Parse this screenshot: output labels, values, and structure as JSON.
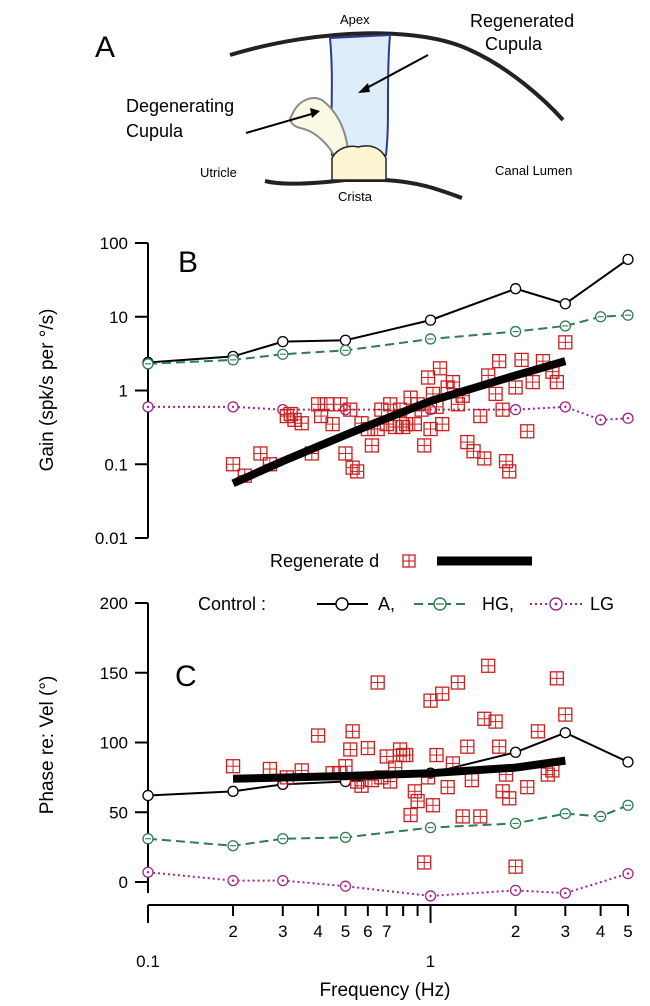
{
  "panel_a": {
    "letter": "A",
    "labels": {
      "apex": "Apex",
      "regenerated": [
        "Regenerated",
        "Cupula"
      ],
      "degenerating": [
        "Degenerating",
        "Cupula"
      ],
      "utricle": "Utricle",
      "crista": "Crista",
      "canal_lumen": "Canal Lumen"
    },
    "colors": {
      "regenerated_fill": "#ddeef8",
      "degenerating_fill": "#fbf8e4",
      "crista_fill": "#fcf5d2",
      "regen_stroke": "#2b3a8f"
    }
  },
  "legend": {
    "regenerated_label": "Regenerate d",
    "control_label": "Control :",
    "a_label": "A,",
    "hg_label": "HG,",
    "lg_label": "LG"
  },
  "colors": {
    "regenerated": "#cc1f1f",
    "A": "#000000",
    "HG": "#2e7d4f",
    "LG": "#a0268c",
    "fit": "#000000"
  },
  "chart_data": [
    {
      "panel": "B",
      "type": "scatter",
      "ylabel": "Gain (spk/s per °/s)",
      "yscale": "log",
      "xscale": "log",
      "ylim": [
        0.01,
        100
      ],
      "xlim": [
        0.1,
        5
      ],
      "yticks": [
        "100",
        "10",
        "1",
        "0.1",
        "0.01"
      ],
      "series": [
        {
          "name": "A",
          "x": [
            0.1,
            0.2,
            0.3,
            0.5,
            1.0,
            2.0,
            3.0,
            5.0
          ],
          "y": [
            2.4,
            2.9,
            4.6,
            4.8,
            9.0,
            24,
            15,
            60
          ]
        },
        {
          "name": "HG",
          "x": [
            0.1,
            0.2,
            0.3,
            0.5,
            1.0,
            2.0,
            3.0,
            4.0,
            5.0
          ],
          "y": [
            2.3,
            2.6,
            3.1,
            3.5,
            5.0,
            6.3,
            7.5,
            10,
            10.5
          ]
        },
        {
          "name": "LG",
          "x": [
            0.1,
            0.2,
            0.3,
            0.5,
            1.0,
            2.0,
            3.0,
            4.0,
            5.0
          ],
          "y": [
            0.6,
            0.6,
            0.55,
            0.55,
            0.55,
            0.55,
            0.6,
            0.4,
            0.42
          ]
        },
        {
          "name": "Regenerated",
          "x": [
            0.2,
            0.22,
            0.25,
            0.27,
            0.31,
            0.32,
            0.33,
            0.35,
            0.38,
            0.4,
            0.41,
            0.43,
            0.45,
            0.48,
            0.5,
            0.52,
            0.53,
            0.55,
            0.57,
            0.6,
            0.62,
            0.65,
            0.67,
            0.7,
            0.72,
            0.75,
            0.78,
            0.8,
            0.82,
            0.85,
            0.88,
            0.9,
            0.93,
            0.95,
            0.98,
            1.0,
            1.02,
            1.05,
            1.08,
            1.1,
            1.15,
            1.2,
            1.25,
            1.3,
            1.35,
            1.42,
            1.5,
            1.55,
            1.6,
            1.7,
            1.75,
            1.8,
            1.85,
            1.9,
            2.0,
            2.1,
            2.2,
            2.3,
            2.5,
            2.7,
            2.8,
            3.0
          ],
          "y": [
            0.1,
            0.07,
            0.14,
            0.1,
            0.45,
            0.48,
            0.4,
            0.36,
            0.14,
            0.65,
            0.45,
            0.65,
            0.35,
            0.65,
            0.14,
            0.55,
            0.09,
            0.08,
            0.36,
            0.3,
            0.18,
            0.3,
            0.55,
            0.35,
            0.65,
            0.32,
            0.55,
            0.32,
            0.35,
            0.8,
            0.35,
            0.65,
            0.55,
            0.18,
            1.5,
            0.3,
            0.9,
            0.6,
            2.0,
            0.35,
            1.1,
            1.3,
            0.65,
            0.85,
            0.2,
            0.15,
            0.45,
            0.12,
            1.6,
            0.9,
            2.5,
            0.55,
            0.11,
            0.08,
            1.1,
            2.6,
            0.28,
            1.3,
            2.5,
            1.8,
            1.3,
            4.5
          ]
        },
        {
          "name": "Fit",
          "x": [
            0.2,
            0.3,
            0.5,
            0.7,
            1.0,
            1.5,
            2.0,
            3.0
          ],
          "y": [
            0.055,
            0.11,
            0.25,
            0.42,
            0.72,
            1.15,
            1.6,
            2.5
          ]
        }
      ]
    },
    {
      "panel": "C",
      "type": "scatter",
      "ylabel": "Phase re: Vel (°)",
      "xlabel": "Frequency (Hz)",
      "xscale": "log",
      "ylim": [
        -10,
        200
      ],
      "xlim": [
        0.1,
        5
      ],
      "yticks": [
        "200",
        "150",
        "100",
        "50",
        "0"
      ],
      "xticks": [
        "0.1",
        "2",
        "3",
        "4",
        "5",
        "6",
        "7",
        "1",
        "2",
        "3",
        "4",
        "5"
      ],
      "series": [
        {
          "name": "A",
          "x": [
            0.1,
            0.2,
            0.3,
            0.5,
            1.0,
            2.0,
            3.0,
            5.0
          ],
          "y": [
            62,
            65,
            70,
            72,
            78,
            93,
            107,
            86
          ]
        },
        {
          "name": "HG",
          "x": [
            0.1,
            0.2,
            0.3,
            0.5,
            1.0,
            2.0,
            3.0,
            4.0,
            5.0
          ],
          "y": [
            31,
            26,
            31,
            32,
            39,
            42,
            49,
            47,
            55
          ]
        },
        {
          "name": "LG",
          "x": [
            0.1,
            0.2,
            0.3,
            0.5,
            1.0,
            2.0,
            3.0,
            5.0
          ],
          "y": [
            7,
            1,
            1,
            -3,
            -10,
            -6,
            -8,
            6
          ]
        },
        {
          "name": "Regenerated",
          "x": [
            0.2,
            0.27,
            0.31,
            0.35,
            0.4,
            0.45,
            0.48,
            0.5,
            0.52,
            0.53,
            0.55,
            0.57,
            0.6,
            0.62,
            0.65,
            0.67,
            0.7,
            0.72,
            0.75,
            0.78,
            0.8,
            0.82,
            0.85,
            0.88,
            0.9,
            0.95,
            0.98,
            1.0,
            1.02,
            1.05,
            1.1,
            1.15,
            1.2,
            1.25,
            1.3,
            1.35,
            1.4,
            1.5,
            1.55,
            1.6,
            1.7,
            1.75,
            1.8,
            1.85,
            1.9,
            2.0,
            2.2,
            2.4,
            2.6,
            2.7,
            2.8,
            3.0
          ],
          "y": [
            83,
            81,
            75,
            80,
            105,
            78,
            78,
            83,
            95,
            108,
            72,
            69,
            96,
            73,
            143,
            75,
            90,
            72,
            82,
            95,
            91,
            91,
            48,
            65,
            58,
            14,
            75,
            130,
            55,
            91,
            135,
            68,
            85,
            143,
            47,
            97,
            73,
            47,
            117,
            155,
            115,
            97,
            65,
            77,
            60,
            11,
            68,
            108,
            77,
            80,
            146,
            120
          ]
        },
        {
          "name": "Fit",
          "x": [
            0.2,
            0.5,
            1.0,
            2.0,
            3.0
          ],
          "y": [
            74,
            76,
            78,
            82,
            87
          ]
        }
      ]
    }
  ]
}
